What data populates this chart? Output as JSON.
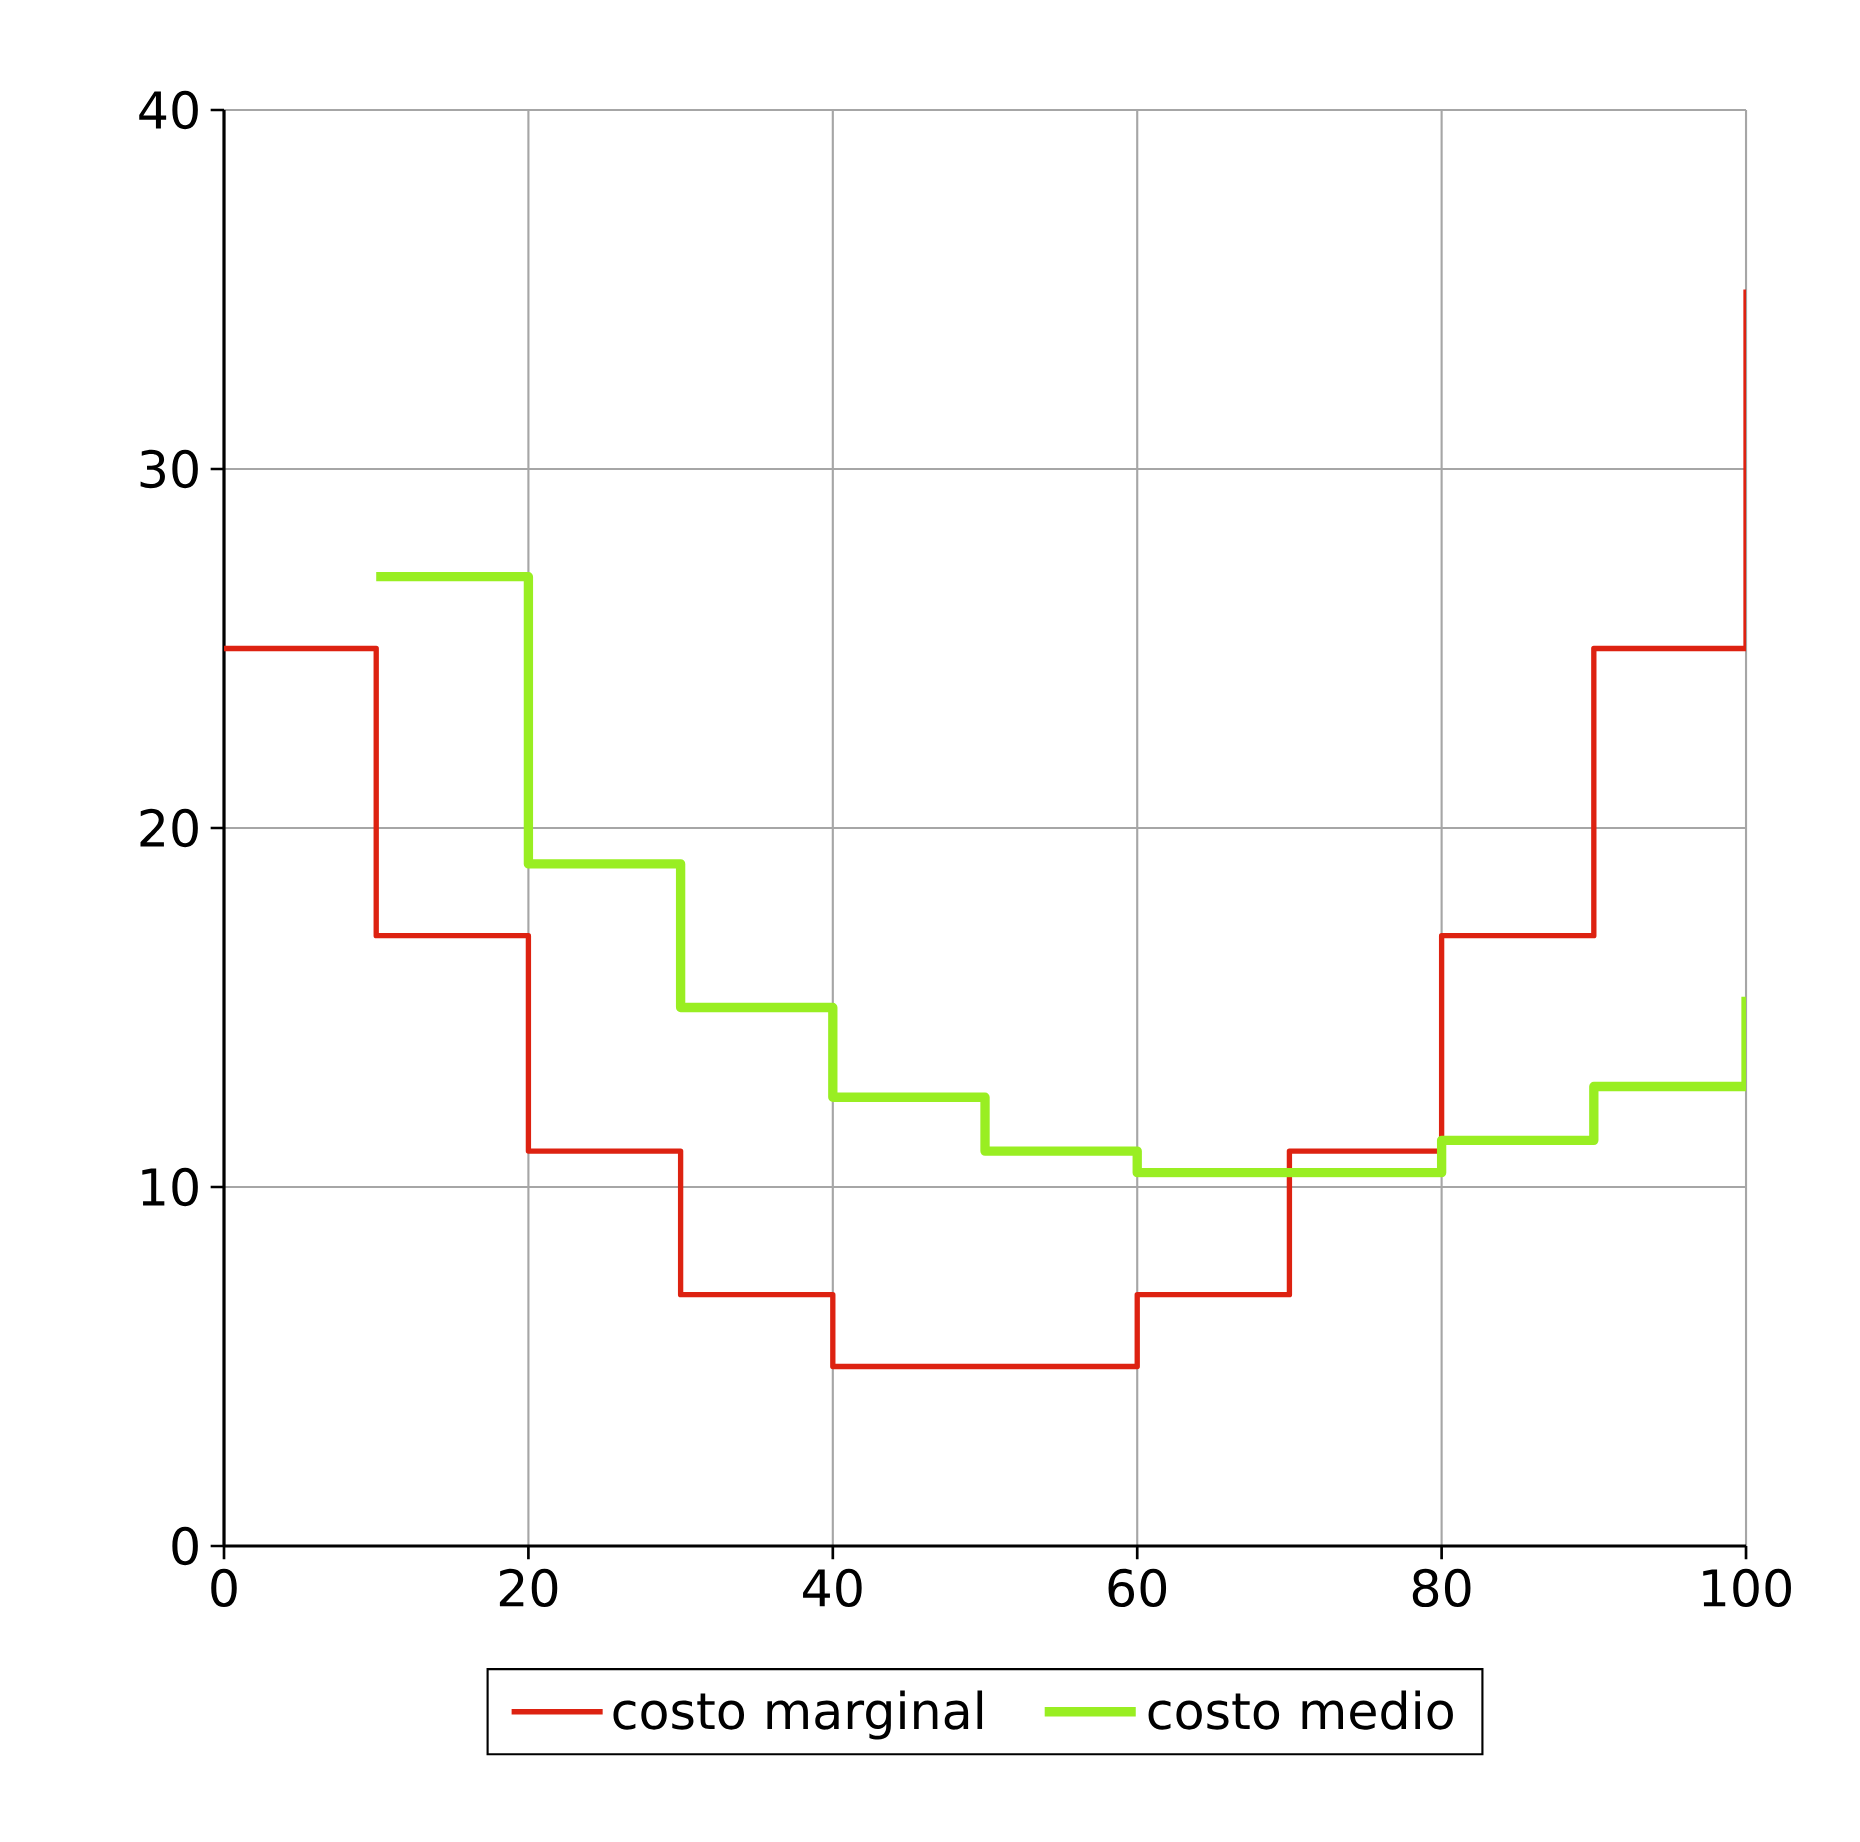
{
  "chart_data": {
    "type": "step",
    "xlim": [
      0,
      100
    ],
    "ylim": [
      0,
      40
    ],
    "xticks": [
      0,
      20,
      40,
      60,
      80,
      100
    ],
    "yticks": [
      0,
      10,
      20,
      30,
      40
    ],
    "grid": true,
    "legend": "bottom",
    "series": [
      {
        "name": "costo marginal",
        "color": "#dd2211",
        "x": [
          0,
          10,
          20,
          30,
          40,
          50,
          60,
          70,
          80,
          90,
          100
        ],
        "values": [
          25,
          17,
          11,
          7,
          5,
          5,
          7,
          11,
          17,
          25,
          35
        ]
      },
      {
        "name": "costo medio",
        "color": "#99ee22",
        "x": [
          10,
          20,
          30,
          40,
          50,
          60,
          70,
          80,
          90,
          100
        ],
        "values": [
          27,
          19,
          15,
          12.5,
          11,
          10.4,
          10.4,
          11.3,
          12.8,
          15.3
        ]
      }
    ]
  }
}
